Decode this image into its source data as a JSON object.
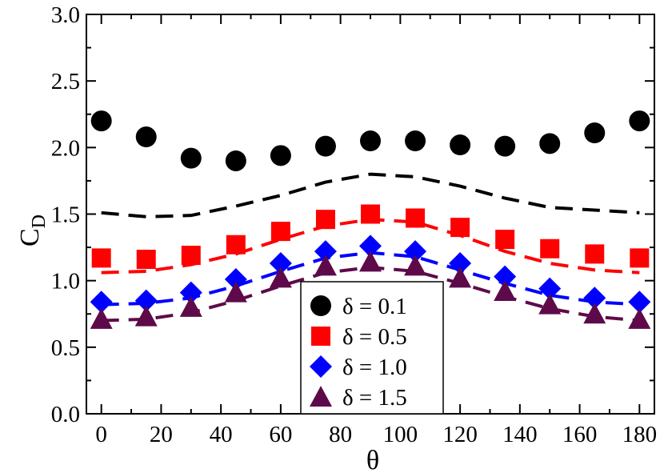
{
  "chart_data": {
    "type": "scatter",
    "title": "",
    "xlabel": "θ",
    "ylabel_main": "C",
    "ylabel_sub": "D",
    "xlim": [
      -5,
      185
    ],
    "ylim": [
      0.0,
      3.0
    ],
    "grid": false,
    "legend_position": "bottom-center",
    "x_ticks": [
      0,
      20,
      40,
      60,
      80,
      100,
      120,
      140,
      160,
      180
    ],
    "x_tick_labels": [
      "0",
      "20",
      "40",
      "60",
      "80",
      "100",
      "120",
      "140",
      "160",
      "180"
    ],
    "y_ticks": [
      0.0,
      0.5,
      1.0,
      1.5,
      2.0,
      2.5,
      3.0
    ],
    "y_tick_labels": [
      "0.0",
      "0.5",
      "1.0",
      "1.5",
      "2.0",
      "2.5",
      "3.0"
    ],
    "series": [
      {
        "name": "δ = 0.1",
        "legend_label": "δ = 0.1",
        "marker": "circle",
        "color": "#000000",
        "x": [
          0,
          15,
          30,
          45,
          60,
          75,
          90,
          105,
          120,
          135,
          150,
          165,
          180
        ],
        "values": [
          2.2,
          2.08,
          1.92,
          1.9,
          1.94,
          2.01,
          2.05,
          2.05,
          2.02,
          2.01,
          2.03,
          2.11,
          2.2
        ],
        "curve_values": [
          1.51,
          1.48,
          1.49,
          1.56,
          1.64,
          1.74,
          1.8,
          1.78,
          1.71,
          1.62,
          1.55,
          1.53,
          1.51
        ]
      },
      {
        "name": "δ = 0.5",
        "legend_label": "δ = 0.5",
        "marker": "square",
        "color": "#ff0000",
        "x": [
          0,
          15,
          30,
          45,
          60,
          75,
          90,
          105,
          120,
          135,
          150,
          165,
          180
        ],
        "values": [
          1.17,
          1.16,
          1.19,
          1.27,
          1.37,
          1.46,
          1.5,
          1.47,
          1.4,
          1.31,
          1.24,
          1.2,
          1.17
        ],
        "curve_values": [
          1.06,
          1.07,
          1.12,
          1.2,
          1.31,
          1.41,
          1.46,
          1.44,
          1.34,
          1.22,
          1.13,
          1.08,
          1.06
        ]
      },
      {
        "name": "δ = 1.0",
        "legend_label": "δ = 1.0",
        "marker": "diamond",
        "color": "#0000ff",
        "x": [
          0,
          15,
          30,
          45,
          60,
          75,
          90,
          105,
          120,
          135,
          150,
          165,
          180
        ],
        "values": [
          0.84,
          0.85,
          0.91,
          1.01,
          1.13,
          1.22,
          1.26,
          1.22,
          1.13,
          1.03,
          0.94,
          0.87,
          0.84
        ],
        "curve_values": [
          0.82,
          0.83,
          0.87,
          0.96,
          1.07,
          1.17,
          1.21,
          1.18,
          1.08,
          0.98,
          0.89,
          0.84,
          0.82
        ]
      },
      {
        "name": "δ = 1.5",
        "legend_label": "δ = 1.5",
        "marker": "triangle",
        "color": "#5e0a4a",
        "x": [
          0,
          15,
          30,
          45,
          60,
          75,
          90,
          105,
          120,
          135,
          150,
          165,
          180
        ],
        "values": [
          0.71,
          0.73,
          0.8,
          0.91,
          1.02,
          1.11,
          1.14,
          1.11,
          1.02,
          0.92,
          0.82,
          0.75,
          0.71
        ],
        "curve_values": [
          0.7,
          0.71,
          0.76,
          0.85,
          0.96,
          1.06,
          1.1,
          1.07,
          0.98,
          0.88,
          0.79,
          0.73,
          0.7
        ]
      }
    ]
  }
}
